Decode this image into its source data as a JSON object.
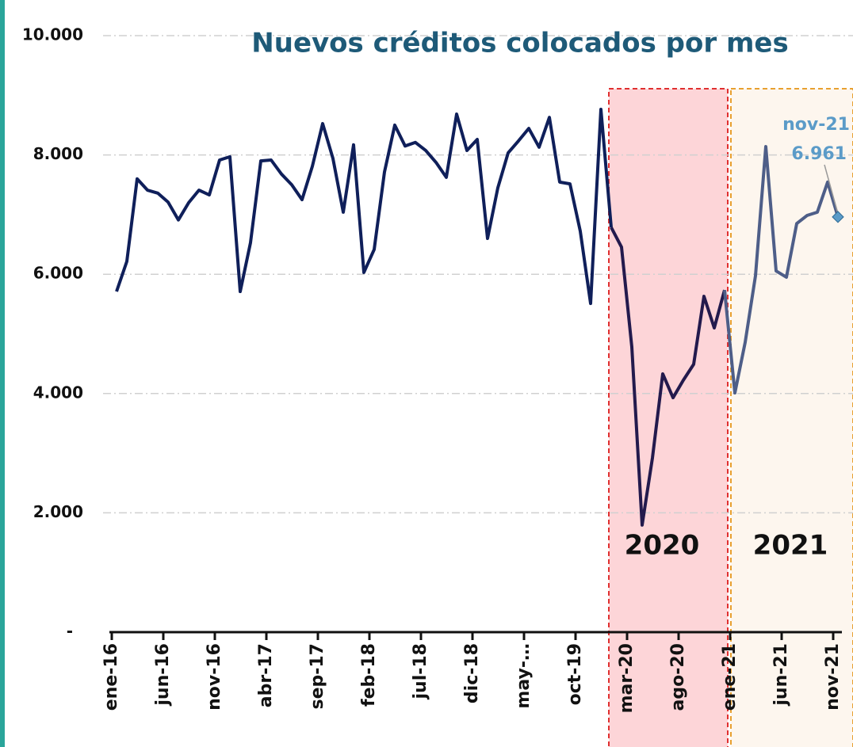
{
  "chart_data": {
    "type": "line",
    "title": "Nuevos créditos colocados por mes",
    "categories": [
      "ene-16",
      null,
      null,
      null,
      null,
      "jun-16",
      null,
      null,
      null,
      null,
      "nov-16",
      null,
      null,
      null,
      null,
      "abr-17",
      null,
      null,
      null,
      null,
      "sep-17",
      null,
      null,
      null,
      null,
      "feb-18",
      null,
      null,
      null,
      null,
      "jul-18",
      null,
      null,
      null,
      null,
      "dic-18",
      null,
      null,
      null,
      null,
      "may-…",
      null,
      null,
      null,
      null,
      "oct-19",
      null,
      null,
      null,
      null,
      "mar-20",
      null,
      null,
      null,
      null,
      "ago-20",
      null,
      null,
      null,
      null,
      "ene-21",
      null,
      null,
      null,
      null,
      "jun-21",
      null,
      null,
      null,
      null,
      "nov-21"
    ],
    "series": [
      {
        "name": "Nuevos créditos",
        "color": "#0f1f5a",
        "values": [
          5710,
          6215,
          7600,
          7410,
          7360,
          7210,
          6910,
          7200,
          7410,
          7330,
          7915,
          7970,
          5710,
          6530,
          7900,
          7915,
          7680,
          7500,
          7250,
          7810,
          8525,
          7940,
          7040,
          8170,
          6030,
          6415,
          7715,
          8500,
          8150,
          8210,
          8075,
          7875,
          7625,
          8685,
          8075,
          8260,
          6600,
          7450,
          8035,
          8235,
          8445,
          8130,
          8630,
          7545,
          7515,
          6720,
          5510,
          8765,
          6785,
          6455,
          4780,
          1795,
          2920,
          4330,
          3930,
          4225,
          4490,
          5630,
          5100,
          5735,
          4010,
          4860,
          5975,
          8140,
          6055,
          5950,
          6850,
          6985,
          7040,
          7545,
          6961
        ],
        "value_labels": [
          null,
          null,
          null,
          null,
          null,
          null,
          null,
          null,
          null,
          null,
          null,
          null,
          null,
          null,
          null,
          null,
          null,
          null,
          null,
          null,
          null,
          null,
          null,
          null,
          null,
          null,
          null,
          null,
          null,
          null,
          null,
          null,
          null,
          null,
          null,
          null,
          null,
          null,
          null,
          null,
          null,
          null,
          null,
          null,
          null,
          null,
          null,
          null,
          null,
          null,
          null,
          null,
          null,
          null,
          null,
          null,
          null,
          null,
          null,
          null,
          null,
          null,
          null,
          null,
          null,
          null,
          null,
          null,
          null,
          null,
          "6.961"
        ]
      }
    ],
    "regions": [
      {
        "label": "2020",
        "fill": "#fdd5d8",
        "border": "#e03030",
        "line_color": "#231a4d"
      },
      {
        "label": "2021",
        "fill": "#fdf6ee",
        "border": "#e8a030",
        "line_color": "#4e5e88"
      }
    ],
    "ylim": [
      0,
      10000
    ],
    "yticks": [
      {
        "value": 0,
        "label": "-"
      },
      {
        "value": 2000,
        "label": "2.000"
      },
      {
        "value": 4000,
        "label": "4.000"
      },
      {
        "value": 6000,
        "label": "6.000"
      },
      {
        "value": 8000,
        "label": "8.000"
      },
      {
        "value": 10000,
        "label": "10.000"
      }
    ],
    "grid": true
  }
}
